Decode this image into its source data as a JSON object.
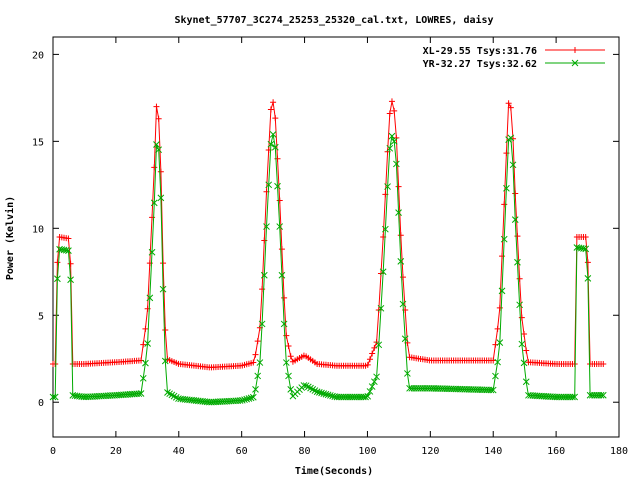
{
  "chart_data": {
    "type": "line",
    "title": "Skynet_57707_3C274_25253_25320_cal.txt, LOWRES, daisy",
    "xlabel": "Time(Seconds)",
    "ylabel": "Power (Kelvin)",
    "xlim": [
      0,
      180
    ],
    "ylim": [
      -2,
      21
    ],
    "xticks": [
      0,
      20,
      40,
      60,
      80,
      100,
      120,
      140,
      160,
      180
    ],
    "yticks": [
      0,
      5,
      10,
      15,
      20
    ],
    "grid": false,
    "legend_position": "top-right",
    "x": [
      0,
      1,
      1.5,
      2,
      5.5,
      6,
      10,
      20,
      28,
      30,
      32,
      33,
      34,
      35,
      36,
      40,
      50,
      60,
      64,
      66,
      68,
      69.5,
      70.5,
      72,
      74,
      76,
      80,
      84,
      90,
      100,
      103,
      105,
      107,
      108,
      109,
      111,
      113,
      120,
      140,
      142,
      144,
      145,
      146,
      147,
      149,
      151,
      160,
      166,
      166.5,
      170,
      170.5,
      175
    ],
    "series": [
      {
        "name": "XL-29.55 Tsys:31.76",
        "color": "#ff0000",
        "marker": "+",
        "values": [
          2.2,
          2.2,
          9.5,
          9.5,
          9.4,
          2.2,
          2.2,
          2.3,
          2.4,
          5.0,
          12.5,
          17.5,
          15.5,
          8.0,
          2.5,
          2.2,
          2.0,
          2.1,
          2.3,
          4.5,
          12.5,
          17.5,
          17.0,
          12.0,
          4.0,
          2.3,
          2.7,
          2.2,
          2.1,
          2.1,
          3.5,
          9.5,
          16.5,
          17.5,
          16.0,
          8.0,
          2.6,
          2.4,
          2.4,
          5.0,
          13.5,
          17.6,
          16.5,
          12.0,
          5.0,
          2.3,
          2.2,
          2.2,
          9.5,
          9.5,
          2.2,
          2.2
        ]
      },
      {
        "name": "YR-32.27 Tsys:32.62",
        "color": "#00aa00",
        "marker": "x",
        "values": [
          0.3,
          0.3,
          8.8,
          8.8,
          8.7,
          0.4,
          0.3,
          0.4,
          0.5,
          3.0,
          10.5,
          15.3,
          14.0,
          6.5,
          0.6,
          0.2,
          0.0,
          0.1,
          0.3,
          2.5,
          10.5,
          15.5,
          15.3,
          10.5,
          2.5,
          0.3,
          1.0,
          0.6,
          0.3,
          0.3,
          1.5,
          7.5,
          14.5,
          15.5,
          14.5,
          6.5,
          0.8,
          0.8,
          0.7,
          3.0,
          11.5,
          15.5,
          15.0,
          10.5,
          3.5,
          0.4,
          0.3,
          0.3,
          8.9,
          8.8,
          0.4,
          0.4
        ]
      }
    ]
  }
}
